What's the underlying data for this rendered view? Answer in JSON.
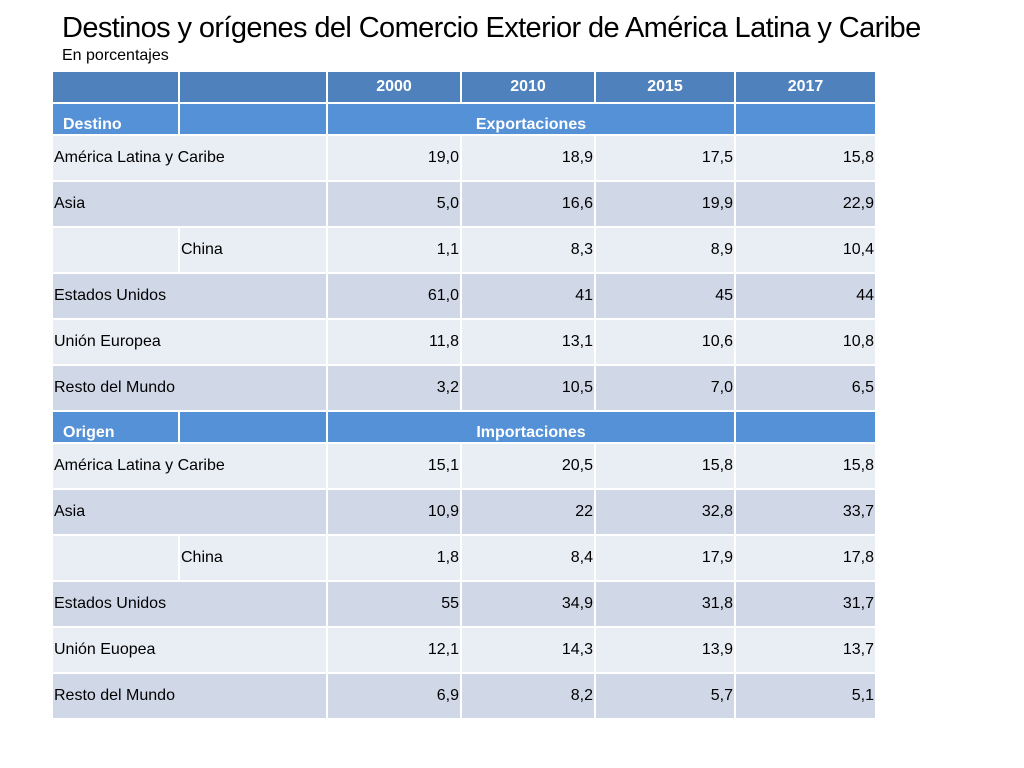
{
  "title": "Destinos y orígenes del Comercio Exterior de América Latina y Caribe",
  "subtitle": "En porcentajes",
  "years": [
    "2000",
    "2010",
    "2015",
    "2017"
  ],
  "sections": [
    {
      "label": "Destino",
      "flow": "Exportaciones",
      "rows": [
        {
          "name": "América Latina y Caribe",
          "sub": "",
          "values": [
            "19,0",
            "18,9",
            "17,5",
            "15,8"
          ]
        },
        {
          "name": "Asia",
          "sub": "",
          "values": [
            "5,0",
            "16,6",
            "19,9",
            "22,9"
          ]
        },
        {
          "name": "",
          "sub": "China",
          "values": [
            "1,1",
            "8,3",
            "8,9",
            "10,4"
          ]
        },
        {
          "name": "Estados Unidos",
          "sub": "",
          "values": [
            "61,0",
            "41",
            "45",
            "44"
          ]
        },
        {
          "name": "Unión Europea",
          "sub": "",
          "values": [
            "11,8",
            "13,1",
            "10,6",
            "10,8"
          ]
        },
        {
          "name": "Resto del Mundo",
          "sub": "",
          "values": [
            "3,2",
            "10,5",
            "7,0",
            "6,5"
          ]
        }
      ]
    },
    {
      "label": "Origen",
      "flow": "Importaciones",
      "rows": [
        {
          "name": "América Latina y Caribe",
          "sub": "",
          "values": [
            "15,1",
            "20,5",
            "15,8",
            "15,8"
          ]
        },
        {
          "name": "Asia",
          "sub": "",
          "values": [
            "10,9",
            "22",
            "32,8",
            "33,7"
          ]
        },
        {
          "name": "",
          "sub": "China",
          "values": [
            "1,8",
            "8,4",
            "17,9",
            "17,8"
          ]
        },
        {
          "name": "Estados Unidos",
          "sub": "",
          "values": [
            "55",
            "34,9",
            "31,8",
            "31,7"
          ]
        },
        {
          "name": "Unión Euopea",
          "sub": "",
          "values": [
            "12,1",
            "14,3",
            "13,9",
            "13,7"
          ]
        },
        {
          "name": "Resto del Mundo",
          "sub": "",
          "values": [
            "6,9",
            "8,2",
            "5,7",
            "5,1"
          ]
        }
      ]
    }
  ]
}
